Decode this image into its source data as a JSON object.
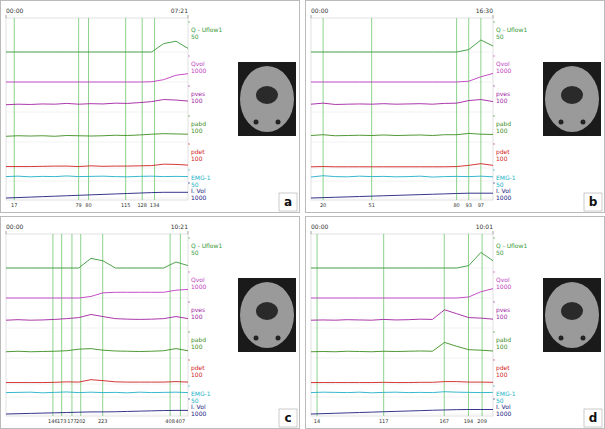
{
  "chart_data": [
    {
      "type": "line",
      "panel_label": "a",
      "xlim": [
        0,
        441
      ],
      "xticks": [
        {
          "value": 0,
          "label": "00:00"
        },
        {
          "value": 441,
          "label": "07:21"
        }
      ],
      "x": [
        0,
        29,
        59,
        88,
        118,
        147,
        176,
        206,
        235,
        265,
        294,
        323,
        353,
        382,
        412,
        441
      ],
      "markers": [
        {
          "time": 20,
          "label": "17"
        },
        {
          "time": 176,
          "label": "79"
        },
        {
          "time": 200,
          "label": "80"
        },
        {
          "time": 290,
          "label": "115"
        },
        {
          "time": 330,
          "label": "128"
        },
        {
          "time": 360,
          "label": "134"
        }
      ],
      "series": [
        {
          "name": "Q - Uflow1",
          "color": "#3a9a3a",
          "ylim": [
            0,
            50
          ],
          "values": [
            0,
            0,
            0,
            0,
            0,
            0,
            0,
            0,
            0,
            0,
            0,
            0,
            0,
            14,
            18,
            6
          ]
        },
        {
          "name": "Qvol",
          "color": "#c03cc0",
          "ylim": [
            0,
            1000
          ],
          "values": [
            0,
            0,
            0,
            0,
            0,
            0,
            0,
            0,
            0,
            0,
            0,
            0,
            10,
            90,
            260,
            320
          ]
        },
        {
          "name": "pves",
          "color": "#a020a0",
          "ylim": [
            0,
            100
          ],
          "values": [
            28,
            30,
            29,
            31,
            30,
            33,
            30,
            32,
            31,
            34,
            33,
            36,
            40,
            48,
            46,
            42
          ]
        },
        {
          "name": "pabd",
          "color": "#3c8c1e",
          "ylim": [
            0,
            100
          ],
          "values": [
            22,
            24,
            23,
            24,
            22,
            25,
            24,
            23,
            24,
            26,
            25,
            27,
            30,
            32,
            31,
            30
          ]
        },
        {
          "name": "pdet",
          "color": "#d02020",
          "ylim": [
            0,
            100
          ],
          "values": [
            6,
            6,
            6,
            7,
            8,
            8,
            6,
            9,
            7,
            8,
            8,
            9,
            10,
            16,
            15,
            12
          ]
        },
        {
          "name": "EMG-1",
          "color": "#20b0c8",
          "ylim": [
            0,
            50
          ],
          "values": [
            20,
            22,
            19,
            21,
            20,
            23,
            20,
            21,
            22,
            20,
            19,
            21,
            22,
            20,
            21,
            20
          ]
        },
        {
          "name": "I. Vol",
          "color": "#202080",
          "ylim": [
            0,
            1000
          ],
          "values": [
            0,
            30,
            60,
            90,
            120,
            150,
            180,
            210,
            240,
            270,
            300,
            330,
            360,
            380,
            380,
            380
          ]
        }
      ]
    },
    {
      "type": "line",
      "panel_label": "b",
      "xlim": [
        0,
        990
      ],
      "xticks": [
        {
          "value": 0,
          "label": "00:00"
        },
        {
          "value": 990,
          "label": "16:30"
        }
      ],
      "x": [
        0,
        66,
        132,
        198,
        264,
        330,
        396,
        462,
        528,
        594,
        660,
        726,
        792,
        858,
        924,
        990
      ],
      "markers": [
        {
          "time": 66,
          "label": "20"
        },
        {
          "time": 330,
          "label": "51"
        },
        {
          "time": 792,
          "label": "80"
        },
        {
          "time": 858,
          "label": "93"
        },
        {
          "time": 924,
          "label": "97"
        }
      ],
      "series": [
        {
          "name": "Q - Uflow1",
          "color": "#3a9a3a",
          "ylim": [
            0,
            50
          ],
          "values": [
            0,
            0,
            0,
            0,
            0,
            0,
            0,
            0,
            0,
            0,
            0,
            0,
            0,
            4,
            20,
            10
          ]
        },
        {
          "name": "Qvol",
          "color": "#c03cc0",
          "ylim": [
            0,
            1000
          ],
          "values": [
            0,
            0,
            0,
            0,
            0,
            0,
            0,
            0,
            0,
            0,
            0,
            0,
            0,
            30,
            200,
            330
          ]
        },
        {
          "name": "pves",
          "color": "#a020a0",
          "ylim": [
            0,
            100
          ],
          "values": [
            30,
            34,
            29,
            30,
            31,
            30,
            32,
            30,
            31,
            32,
            30,
            33,
            34,
            44,
            48,
            40
          ]
        },
        {
          "name": "pabd",
          "color": "#3c8c1e",
          "ylim": [
            0,
            100
          ],
          "values": [
            25,
            28,
            24,
            25,
            26,
            25,
            27,
            25,
            26,
            27,
            25,
            28,
            28,
            33,
            30,
            29
          ]
        },
        {
          "name": "pdet",
          "color": "#d02020",
          "ylim": [
            0,
            100
          ],
          "values": [
            5,
            6,
            5,
            5,
            5,
            5,
            5,
            5,
            5,
            5,
            5,
            5,
            6,
            11,
            18,
            11
          ]
        },
        {
          "name": "EMG-1",
          "color": "#20b0c8",
          "ylim": [
            0,
            50
          ],
          "values": [
            18,
            24,
            20,
            19,
            22,
            20,
            21,
            19,
            20,
            22,
            18,
            20,
            21,
            20,
            22,
            19
          ]
        },
        {
          "name": "I. Vol",
          "color": "#202080",
          "ylim": [
            0,
            1000
          ],
          "values": [
            0,
            25,
            50,
            75,
            100,
            125,
            150,
            175,
            200,
            225,
            250,
            275,
            300,
            320,
            320,
            320
          ]
        }
      ]
    },
    {
      "type": "line",
      "panel_label": "c",
      "xlim": [
        0,
        621
      ],
      "xticks": [
        {
          "value": 0,
          "label": "00:00"
        },
        {
          "value": 621,
          "label": "10:21"
        }
      ],
      "x": [
        0,
        41,
        83,
        124,
        166,
        207,
        248,
        290,
        331,
        373,
        414,
        455,
        497,
        538,
        580,
        621
      ],
      "markers": [
        {
          "time": 160,
          "label": "146"
        },
        {
          "time": 190,
          "label": "173"
        },
        {
          "time": 225,
          "label": "177"
        },
        {
          "time": 255,
          "label": "202"
        },
        {
          "time": 330,
          "label": "223"
        },
        {
          "time": 560,
          "label": "408"
        },
        {
          "time": 595,
          "label": "407"
        }
      ],
      "series": [
        {
          "name": "Q - Uflow1",
          "color": "#3a9a3a",
          "ylim": [
            0,
            50
          ],
          "values": [
            0,
            0,
            0,
            0,
            0,
            0,
            0,
            16,
            12,
            0,
            0,
            0,
            0,
            0,
            10,
            4
          ]
        },
        {
          "name": "Qvol",
          "color": "#c03cc0",
          "ylim": [
            0,
            1000
          ],
          "values": [
            0,
            0,
            0,
            0,
            0,
            0,
            0,
            60,
            200,
            220,
            220,
            220,
            220,
            220,
            300,
            330
          ]
        },
        {
          "name": "pves",
          "color": "#a020a0",
          "ylim": [
            0,
            100
          ],
          "values": [
            30,
            32,
            30,
            31,
            33,
            36,
            40,
            52,
            44,
            36,
            34,
            33,
            34,
            36,
            44,
            36
          ]
        },
        {
          "name": "pabd",
          "color": "#3c8c1e",
          "ylim": [
            0,
            100
          ],
          "values": [
            24,
            26,
            24,
            25,
            26,
            28,
            34,
            36,
            30,
            27,
            26,
            25,
            26,
            28,
            36,
            28
          ]
        },
        {
          "name": "pdet",
          "color": "#d02020",
          "ylim": [
            0,
            100
          ],
          "values": [
            6,
            6,
            6,
            6,
            7,
            9,
            8,
            18,
            14,
            9,
            8,
            8,
            8,
            8,
            10,
            8
          ]
        },
        {
          "name": "EMG-1",
          "color": "#20b0c8",
          "ylim": [
            0,
            50
          ],
          "values": [
            20,
            21,
            22,
            19,
            21,
            23,
            20,
            22,
            20,
            21,
            19,
            22,
            20,
            21,
            22,
            20
          ]
        },
        {
          "name": "I. Vol",
          "color": "#202080",
          "ylim": [
            0,
            1000
          ],
          "values": [
            0,
            20,
            40,
            60,
            80,
            100,
            120,
            140,
            140,
            150,
            170,
            190,
            210,
            230,
            240,
            240
          ]
        }
      ]
    },
    {
      "type": "line",
      "panel_label": "d",
      "xlim": [
        0,
        601
      ],
      "xticks": [
        {
          "value": 0,
          "label": "00:00"
        },
        {
          "value": 601,
          "label": "10:01"
        }
      ],
      "x": [
        0,
        40,
        80,
        120,
        160,
        200,
        240,
        280,
        321,
        361,
        401,
        441,
        481,
        521,
        561,
        601
      ],
      "markers": [
        {
          "time": 20,
          "label": "14"
        },
        {
          "time": 240,
          "label": "117"
        },
        {
          "time": 440,
          "label": "167"
        },
        {
          "time": 520,
          "label": "194"
        },
        {
          "time": 565,
          "label": "209"
        }
      ],
      "series": [
        {
          "name": "Q - Uflow1",
          "color": "#3a9a3a",
          "ylim": [
            0,
            50
          ],
          "values": [
            0,
            0,
            0,
            0,
            0,
            0,
            0,
            0,
            0,
            0,
            0,
            0,
            0,
            4,
            26,
            12
          ]
        },
        {
          "name": "Qvol",
          "color": "#c03cc0",
          "ylim": [
            0,
            1000
          ],
          "values": [
            0,
            0,
            0,
            0,
            0,
            0,
            0,
            0,
            0,
            0,
            0,
            0,
            0,
            40,
            240,
            360
          ]
        },
        {
          "name": "pves",
          "color": "#a020a0",
          "ylim": [
            0,
            100
          ],
          "values": [
            30,
            31,
            30,
            32,
            31,
            30,
            33,
            31,
            32,
            34,
            33,
            70,
            55,
            40,
            38,
            34
          ]
        },
        {
          "name": "pabd",
          "color": "#3c8c1e",
          "ylim": [
            0,
            100
          ],
          "values": [
            24,
            25,
            24,
            26,
            25,
            24,
            26,
            25,
            26,
            27,
            26,
            60,
            45,
            32,
            30,
            27
          ]
        },
        {
          "name": "pdet",
          "color": "#d02020",
          "ylim": [
            0,
            100
          ],
          "values": [
            6,
            6,
            6,
            6,
            6,
            6,
            7,
            6,
            6,
            7,
            7,
            10,
            10,
            8,
            8,
            7
          ]
        },
        {
          "name": "EMG-1",
          "color": "#20b0c8",
          "ylim": [
            0,
            50
          ],
          "values": [
            20,
            22,
            21,
            20,
            22,
            19,
            21,
            22,
            20,
            21,
            20,
            24,
            22,
            21,
            20,
            21
          ]
        },
        {
          "name": "I. Vol",
          "color": "#202080",
          "ylim": [
            0,
            1000
          ],
          "values": [
            0,
            25,
            50,
            75,
            100,
            125,
            150,
            175,
            200,
            225,
            250,
            270,
            290,
            300,
            300,
            300
          ]
        }
      ]
    }
  ]
}
